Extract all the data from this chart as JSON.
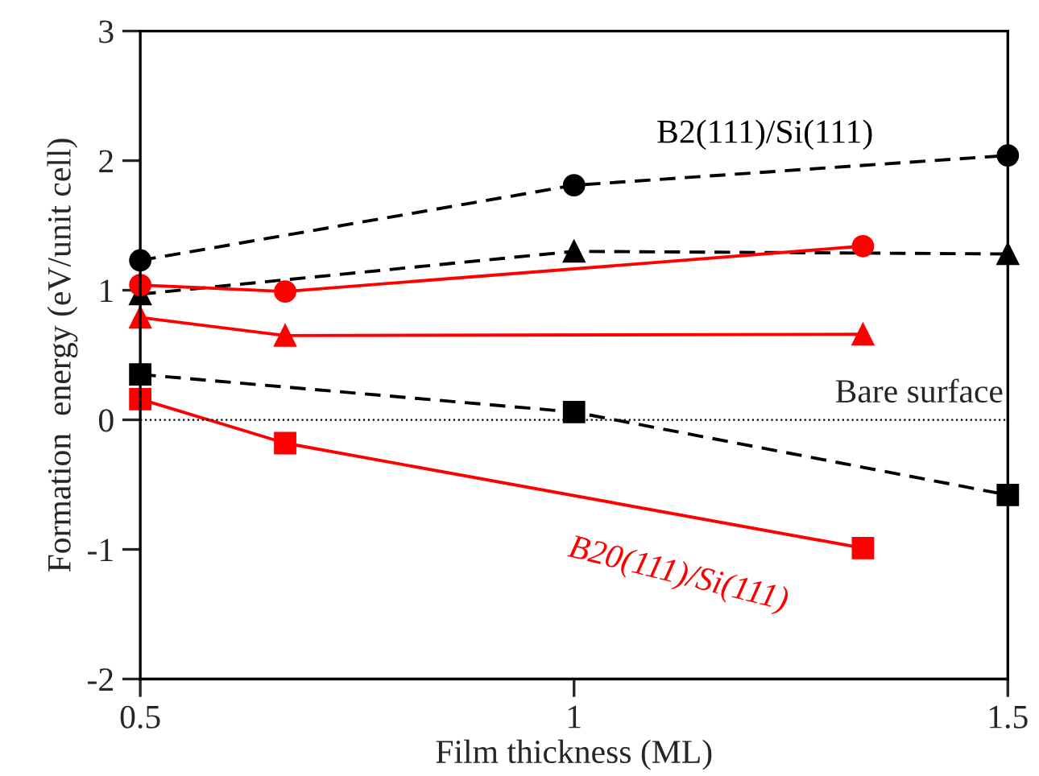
{
  "chart_data": {
    "type": "line",
    "xlabel": "Film thickness (ML)",
    "ylabel": "Formation  energy (eV/unit cell)",
    "xlim": [
      0.5,
      1.5
    ],
    "xticks": [
      0.5,
      1,
      1.5
    ],
    "ylim": [
      -2,
      3
    ],
    "yticks": [
      -2,
      -1,
      0,
      1,
      2,
      3
    ],
    "grid": false,
    "legend": false,
    "series": [
      {
        "color": "#000000",
        "marker": "circle",
        "line_style": "dashed",
        "x": [
          0.5,
          1.0,
          1.5
        ],
        "values": [
          1.23,
          1.81,
          2.04
        ]
      },
      {
        "color": "#000000",
        "marker": "triangle",
        "line_style": "dashed",
        "x": [
          0.5,
          1.0,
          1.5
        ],
        "values": [
          0.97,
          1.3,
          1.28
        ]
      },
      {
        "color": "#000000",
        "marker": "square",
        "line_style": "dashed",
        "x": [
          0.5,
          1.0,
          1.5
        ],
        "values": [
          0.35,
          0.06,
          -0.58
        ]
      },
      {
        "color": "#ff0000",
        "marker": "circle",
        "line_style": "solid",
        "x": [
          0.5,
          0.667,
          1.333
        ],
        "values": [
          1.04,
          0.99,
          1.34
        ]
      },
      {
        "color": "#ff0000",
        "marker": "triangle",
        "line_style": "solid",
        "x": [
          0.5,
          0.667,
          1.333
        ],
        "values": [
          0.79,
          0.65,
          0.66
        ]
      },
      {
        "color": "#ff0000",
        "marker": "square",
        "line_style": "solid",
        "x": [
          0.5,
          0.667,
          1.333
        ],
        "values": [
          0.16,
          -0.18,
          -0.99
        ]
      }
    ],
    "ref_lines": [
      {
        "axis": "y",
        "value": 0,
        "line_style": "dotted",
        "color": "#000000",
        "label": "Bare surface"
      }
    ],
    "annotations": [
      "B2(111)/Si(111)",
      "B20(111)/Si(111)"
    ]
  }
}
